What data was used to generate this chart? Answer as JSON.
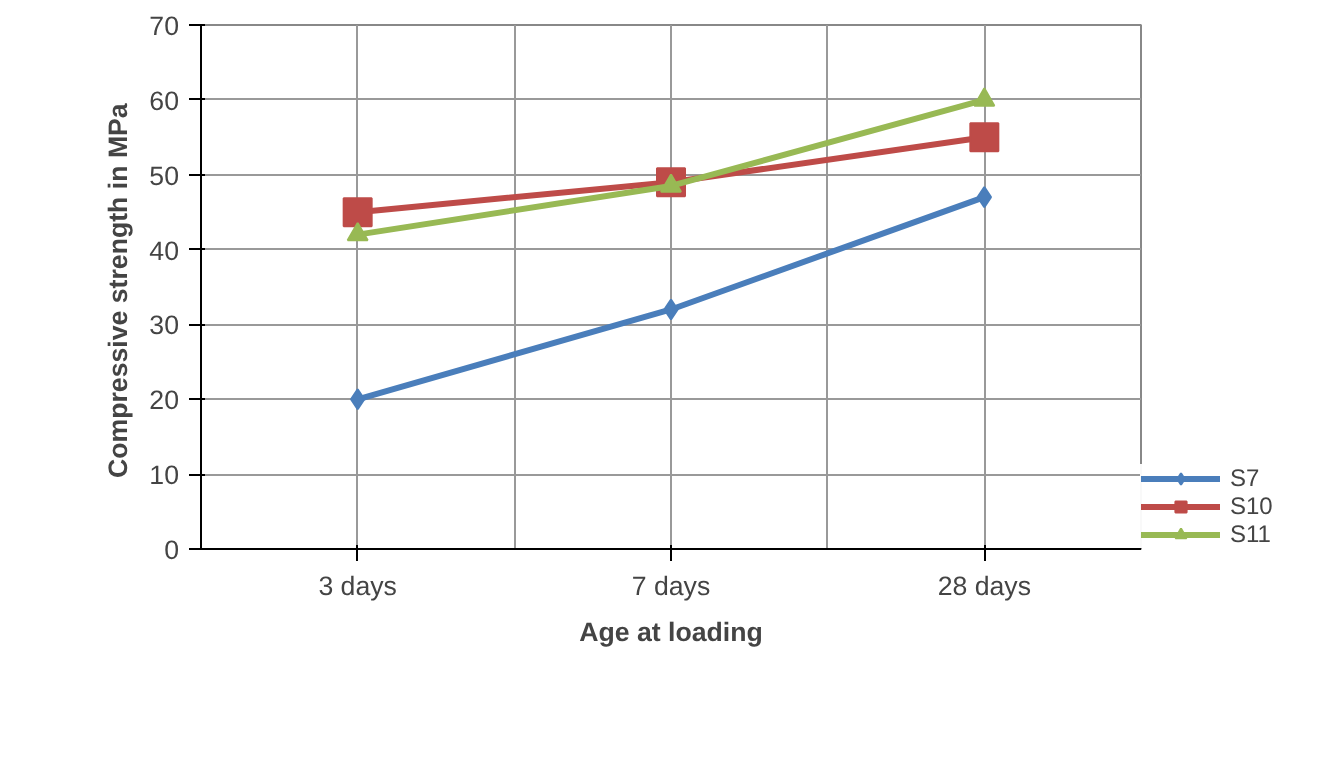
{
  "chart_data": {
    "type": "line",
    "xlabel": "Age at loading",
    "ylabel": "Compressive strength in  MPa",
    "categories": [
      "3 days",
      "7 days",
      "28 days"
    ],
    "series": [
      {
        "name": "S7",
        "color": "#4a7ebb",
        "marker": "diamond",
        "values": [
          20,
          32,
          47
        ]
      },
      {
        "name": "S10",
        "color": "#be4b48",
        "marker": "square",
        "values": [
          45,
          49,
          55
        ]
      },
      {
        "name": "S11",
        "color": "#98b954",
        "marker": "triangle",
        "values": [
          42,
          48.5,
          60
        ]
      }
    ],
    "ylim": [
      0,
      70
    ],
    "yticks": [
      0,
      10,
      20,
      30,
      40,
      50,
      60,
      70
    ],
    "grid": true,
    "legend": "bottom right",
    "line_style": "solid"
  }
}
